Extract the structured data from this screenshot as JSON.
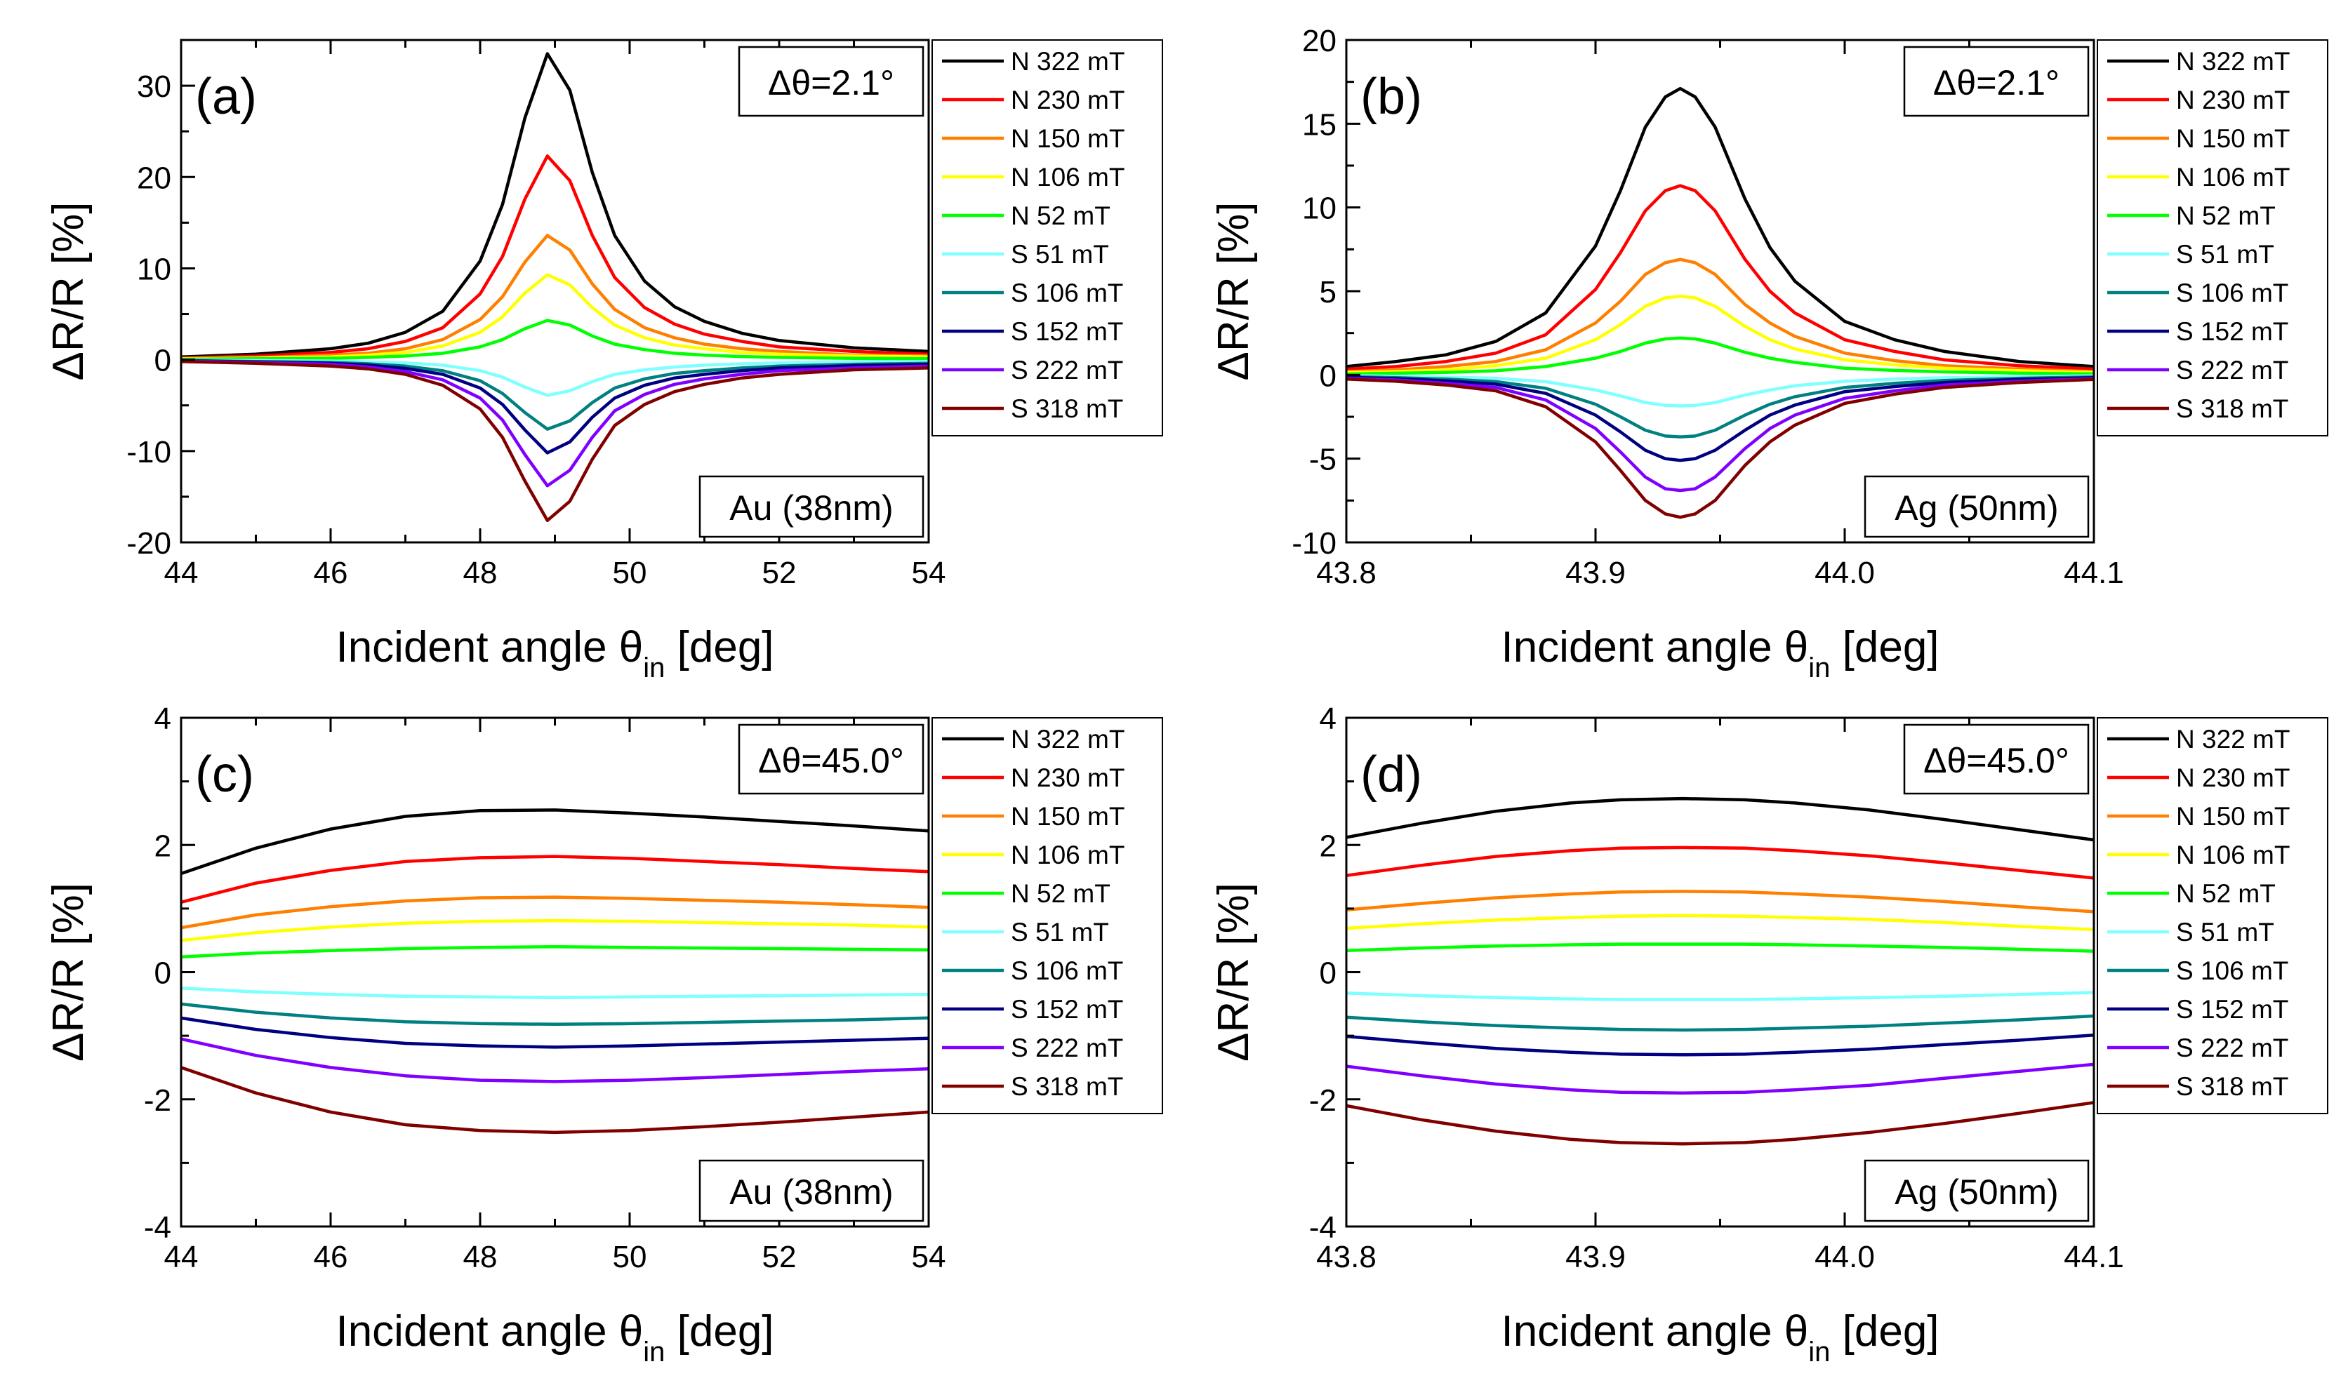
{
  "chart_data": [
    {
      "type": "line",
      "panel": "(a)",
      "delta_theta": "Δθ=2.1°",
      "sample": "Au (38nm)",
      "xlabel_main": "Incident angle θ",
      "xlabel_sub": "in",
      "xlabel_tail": " [deg]",
      "ylabel": "ΔR/R [%]",
      "xlim": [
        44,
        54
      ],
      "ylim": [
        -20,
        35
      ],
      "xticks": [
        44,
        46,
        48,
        50,
        52,
        54
      ],
      "yticks": [
        -20,
        -10,
        0,
        10,
        20,
        30
      ],
      "xtick_labels": [
        "44",
        "46",
        "48",
        "50",
        "52",
        "54"
      ],
      "ytick_labels": [
        "-20",
        "-10",
        "0",
        "10",
        "20",
        "30"
      ],
      "x": [
        44,
        45,
        46,
        46.5,
        47,
        47.5,
        48,
        48.3,
        48.6,
        48.9,
        49.2,
        49.5,
        49.8,
        50.2,
        50.6,
        51,
        51.5,
        52,
        53,
        54
      ],
      "series": [
        {
          "name": "N 322 mT",
          "color": "#000000",
          "values": [
            0.3,
            0.6,
            1.2,
            1.8,
            3.0,
            5.3,
            10.8,
            17.0,
            26.5,
            33.5,
            29.5,
            20.5,
            13.6,
            8.6,
            5.8,
            4.2,
            2.9,
            2.1,
            1.3,
            0.9
          ]
        },
        {
          "name": "N 230 mT",
          "color": "#ff0000",
          "values": [
            0.2,
            0.4,
            0.8,
            1.2,
            2.0,
            3.5,
            7.2,
            11.3,
            17.6,
            22.3,
            19.6,
            13.6,
            9.0,
            5.7,
            3.9,
            2.8,
            2.0,
            1.4,
            0.9,
            0.6
          ]
        },
        {
          "name": "N 150 mT",
          "color": "#ff7f00",
          "values": [
            0.1,
            0.2,
            0.5,
            0.7,
            1.2,
            2.2,
            4.4,
            6.9,
            10.7,
            13.6,
            12.0,
            8.3,
            5.5,
            3.5,
            2.4,
            1.7,
            1.2,
            0.9,
            0.5,
            0.4
          ]
        },
        {
          "name": "N 106 mT",
          "color": "#ffff00",
          "values": [
            0.1,
            0.2,
            0.3,
            0.5,
            0.8,
            1.5,
            3.0,
            4.7,
            7.3,
            9.3,
            8.2,
            5.7,
            3.8,
            2.4,
            1.6,
            1.2,
            0.8,
            0.6,
            0.4,
            0.3
          ]
        },
        {
          "name": "N 52 mT",
          "color": "#00ff00",
          "values": [
            0.05,
            0.1,
            0.15,
            0.25,
            0.4,
            0.7,
            1.4,
            2.2,
            3.4,
            4.3,
            3.8,
            2.6,
            1.7,
            1.1,
            0.7,
            0.5,
            0.35,
            0.25,
            0.15,
            0.1
          ]
        },
        {
          "name": "S 51 mT",
          "color": "#80ffff",
          "values": [
            -0.05,
            -0.1,
            -0.15,
            -0.25,
            -0.35,
            -0.6,
            -1.2,
            -1.9,
            -3.0,
            -3.9,
            -3.4,
            -2.4,
            -1.6,
            -1.1,
            -0.8,
            -0.6,
            -0.45,
            -0.35,
            -0.25,
            -0.2
          ]
        },
        {
          "name": "S 106 mT",
          "color": "#008080",
          "values": [
            -0.1,
            -0.2,
            -0.3,
            -0.45,
            -0.7,
            -1.2,
            -2.3,
            -3.7,
            -5.8,
            -7.6,
            -6.7,
            -4.7,
            -3.1,
            -2.1,
            -1.5,
            -1.2,
            -0.9,
            -0.7,
            -0.5,
            -0.4
          ]
        },
        {
          "name": "S 152 mT",
          "color": "#000080",
          "values": [
            -0.1,
            -0.25,
            -0.4,
            -0.6,
            -0.95,
            -1.6,
            -3.1,
            -4.9,
            -7.7,
            -10.2,
            -9.0,
            -6.3,
            -4.2,
            -2.8,
            -2.0,
            -1.6,
            -1.2,
            -0.9,
            -0.65,
            -0.5
          ]
        },
        {
          "name": "S 222 mT",
          "color": "#8000ff",
          "values": [
            -0.15,
            -0.3,
            -0.5,
            -0.8,
            -1.3,
            -2.2,
            -4.2,
            -6.6,
            -10.4,
            -13.8,
            -12.1,
            -8.5,
            -5.6,
            -3.8,
            -2.7,
            -2.1,
            -1.6,
            -1.2,
            -0.9,
            -0.7
          ]
        },
        {
          "name": "S 318 mT",
          "color": "#800000",
          "values": [
            -0.2,
            -0.4,
            -0.7,
            -1.0,
            -1.6,
            -2.8,
            -5.4,
            -8.5,
            -13.3,
            -17.6,
            -15.5,
            -10.9,
            -7.2,
            -4.9,
            -3.5,
            -2.7,
            -2.0,
            -1.6,
            -1.1,
            -0.9
          ]
        }
      ]
    },
    {
      "type": "line",
      "panel": "(b)",
      "delta_theta": "Δθ=2.1°",
      "sample": "Ag (50nm)",
      "xlabel_main": "Incident angle θ",
      "xlabel_sub": "in",
      "xlabel_tail": " [deg]",
      "ylabel": "ΔR/R [%]",
      "xlim": [
        43.8,
        44.1
      ],
      "ylim": [
        -10,
        20
      ],
      "xticks": [
        43.8,
        43.9,
        44.0,
        44.1
      ],
      "yticks": [
        -10,
        -5,
        0,
        5,
        10,
        15,
        20
      ],
      "xtick_labels": [
        "43.8",
        "43.9",
        "44.0",
        "44.1"
      ],
      "ytick_labels": [
        "-10",
        "-5",
        "0",
        "5",
        "10",
        "15",
        "20"
      ],
      "x": [
        43.8,
        43.82,
        43.84,
        43.86,
        43.88,
        43.9,
        43.91,
        43.92,
        43.928,
        43.934,
        43.94,
        43.948,
        43.96,
        43.97,
        43.98,
        44.0,
        44.02,
        44.04,
        44.07,
        44.1
      ],
      "series": [
        {
          "name": "N 322 mT",
          "color": "#000000",
          "values": [
            0.5,
            0.8,
            1.2,
            2.0,
            3.7,
            7.7,
            11.0,
            14.8,
            16.6,
            17.1,
            16.6,
            14.8,
            10.5,
            7.6,
            5.6,
            3.2,
            2.1,
            1.4,
            0.8,
            0.5
          ]
        },
        {
          "name": "N 230 mT",
          "color": "#ff0000",
          "values": [
            0.35,
            0.5,
            0.8,
            1.3,
            2.4,
            5.1,
            7.3,
            9.8,
            11.0,
            11.3,
            11.0,
            9.8,
            6.9,
            5.0,
            3.7,
            2.1,
            1.4,
            0.9,
            0.55,
            0.35
          ]
        },
        {
          "name": "N 150 mT",
          "color": "#ff7f00",
          "values": [
            0.2,
            0.3,
            0.5,
            0.8,
            1.5,
            3.1,
            4.4,
            6.0,
            6.7,
            6.9,
            6.7,
            6.0,
            4.2,
            3.1,
            2.3,
            1.3,
            0.85,
            0.55,
            0.35,
            0.2
          ]
        },
        {
          "name": "N 106 mT",
          "color": "#ffff00",
          "values": [
            0.15,
            0.2,
            0.3,
            0.55,
            1.0,
            2.1,
            3.0,
            4.1,
            4.6,
            4.7,
            4.6,
            4.1,
            2.9,
            2.1,
            1.55,
            0.9,
            0.6,
            0.4,
            0.25,
            0.15
          ]
        },
        {
          "name": "N 52 mT",
          "color": "#00ff00",
          "values": [
            0.05,
            0.1,
            0.15,
            0.25,
            0.5,
            1.0,
            1.4,
            1.9,
            2.15,
            2.2,
            2.15,
            1.9,
            1.35,
            1.0,
            0.75,
            0.4,
            0.27,
            0.18,
            0.1,
            0.06
          ]
        },
        {
          "name": "S 51 mT",
          "color": "#80ffff",
          "values": [
            -0.05,
            -0.08,
            -0.13,
            -0.2,
            -0.4,
            -0.9,
            -1.25,
            -1.65,
            -1.82,
            -1.85,
            -1.82,
            -1.65,
            -1.2,
            -0.9,
            -0.65,
            -0.38,
            -0.25,
            -0.17,
            -0.1,
            -0.06
          ]
        },
        {
          "name": "S 106 mT",
          "color": "#008080",
          "values": [
            -0.1,
            -0.16,
            -0.25,
            -0.4,
            -0.8,
            -1.75,
            -2.5,
            -3.3,
            -3.65,
            -3.7,
            -3.65,
            -3.3,
            -2.4,
            -1.75,
            -1.3,
            -0.75,
            -0.5,
            -0.33,
            -0.2,
            -0.12
          ]
        },
        {
          "name": "S 152 mT",
          "color": "#000080",
          "values": [
            -0.14,
            -0.22,
            -0.35,
            -0.55,
            -1.1,
            -2.4,
            -3.4,
            -4.5,
            -5.0,
            -5.1,
            -5.0,
            -4.5,
            -3.3,
            -2.4,
            -1.8,
            -1.0,
            -0.7,
            -0.45,
            -0.27,
            -0.16
          ]
        },
        {
          "name": "S 222 mT",
          "color": "#8000ff",
          "values": [
            -0.2,
            -0.3,
            -0.5,
            -0.75,
            -1.5,
            -3.2,
            -4.6,
            -6.1,
            -6.8,
            -6.9,
            -6.8,
            -6.1,
            -4.4,
            -3.2,
            -2.4,
            -1.4,
            -0.95,
            -0.6,
            -0.37,
            -0.22
          ]
        },
        {
          "name": "S 318 mT",
          "color": "#800000",
          "values": [
            -0.25,
            -0.38,
            -0.6,
            -0.95,
            -1.9,
            -4.0,
            -5.7,
            -7.5,
            -8.3,
            -8.5,
            -8.3,
            -7.5,
            -5.4,
            -4.0,
            -3.0,
            -1.7,
            -1.15,
            -0.75,
            -0.45,
            -0.27
          ]
        }
      ]
    },
    {
      "type": "line",
      "panel": "(c)",
      "delta_theta": "Δθ=45.0°",
      "sample": "Au (38nm)",
      "xlabel_main": "Incident angle θ",
      "xlabel_sub": "in",
      "xlabel_tail": " [deg]",
      "ylabel": "ΔR/R [%]",
      "xlim": [
        44,
        54
      ],
      "ylim": [
        -4,
        4
      ],
      "xticks": [
        44,
        46,
        48,
        50,
        52,
        54
      ],
      "yticks": [
        -4,
        -2,
        0,
        2,
        4
      ],
      "xtick_labels": [
        "44",
        "46",
        "48",
        "50",
        "52",
        "54"
      ],
      "ytick_labels": [
        "-4",
        "-2",
        "0",
        "2",
        "4"
      ],
      "x": [
        44,
        45,
        46,
        47,
        48,
        49,
        50,
        51,
        52,
        53,
        54
      ],
      "series": [
        {
          "name": "N 322 mT",
          "color": "#000000",
          "values": [
            1.55,
            1.95,
            2.25,
            2.45,
            2.54,
            2.55,
            2.5,
            2.44,
            2.37,
            2.3,
            2.22
          ]
        },
        {
          "name": "N 230 mT",
          "color": "#ff0000",
          "values": [
            1.1,
            1.4,
            1.6,
            1.74,
            1.8,
            1.82,
            1.79,
            1.74,
            1.69,
            1.63,
            1.58
          ]
        },
        {
          "name": "N 150 mT",
          "color": "#ff7f00",
          "values": [
            0.7,
            0.9,
            1.03,
            1.12,
            1.17,
            1.18,
            1.16,
            1.13,
            1.1,
            1.06,
            1.02
          ]
        },
        {
          "name": "N 106 mT",
          "color": "#ffff00",
          "values": [
            0.5,
            0.62,
            0.71,
            0.77,
            0.8,
            0.81,
            0.8,
            0.78,
            0.76,
            0.74,
            0.71
          ]
        },
        {
          "name": "N 52 mT",
          "color": "#00ff00",
          "values": [
            0.24,
            0.3,
            0.34,
            0.37,
            0.39,
            0.4,
            0.39,
            0.38,
            0.37,
            0.36,
            0.35
          ]
        },
        {
          "name": "S 51 mT",
          "color": "#80ffff",
          "values": [
            -0.25,
            -0.31,
            -0.35,
            -0.38,
            -0.39,
            -0.4,
            -0.39,
            -0.38,
            -0.37,
            -0.36,
            -0.35
          ]
        },
        {
          "name": "S 106 mT",
          "color": "#008080",
          "values": [
            -0.5,
            -0.63,
            -0.72,
            -0.78,
            -0.81,
            -0.82,
            -0.81,
            -0.79,
            -0.77,
            -0.75,
            -0.72
          ]
        },
        {
          "name": "S 152 mT",
          "color": "#000080",
          "values": [
            -0.72,
            -0.9,
            -1.03,
            -1.12,
            -1.16,
            -1.18,
            -1.16,
            -1.13,
            -1.1,
            -1.07,
            -1.04
          ]
        },
        {
          "name": "S 222 mT",
          "color": "#8000ff",
          "values": [
            -1.05,
            -1.31,
            -1.5,
            -1.63,
            -1.7,
            -1.72,
            -1.7,
            -1.66,
            -1.61,
            -1.56,
            -1.52
          ]
        },
        {
          "name": "S 318 mT",
          "color": "#800000",
          "values": [
            -1.5,
            -1.9,
            -2.2,
            -2.4,
            -2.49,
            -2.52,
            -2.49,
            -2.43,
            -2.36,
            -2.28,
            -2.2
          ]
        }
      ]
    },
    {
      "type": "line",
      "panel": "(d)",
      "delta_theta": "Δθ=45.0°",
      "sample": "Ag (50nm)",
      "xlabel_main": "Incident angle θ",
      "xlabel_sub": "in",
      "xlabel_tail": " [deg]",
      "ylabel": "ΔR/R [%]",
      "xlim": [
        43.8,
        44.1
      ],
      "ylim": [
        -4,
        4
      ],
      "xticks": [
        43.8,
        43.9,
        44.0,
        44.1
      ],
      "yticks": [
        -4,
        -2,
        0,
        2,
        4
      ],
      "xtick_labels": [
        "43.8",
        "43.9",
        "44.0",
        "44.1"
      ],
      "ytick_labels": [
        "-4",
        "-2",
        "0",
        "2",
        "4"
      ],
      "x": [
        43.8,
        43.83,
        43.86,
        43.89,
        43.91,
        43.935,
        43.96,
        43.98,
        44.01,
        44.04,
        44.07,
        44.1
      ],
      "series": [
        {
          "name": "N 322 mT",
          "color": "#000000",
          "values": [
            2.12,
            2.34,
            2.53,
            2.66,
            2.71,
            2.73,
            2.71,
            2.66,
            2.55,
            2.4,
            2.24,
            2.08
          ]
        },
        {
          "name": "N 230 mT",
          "color": "#ff0000",
          "values": [
            1.52,
            1.68,
            1.82,
            1.91,
            1.95,
            1.96,
            1.95,
            1.91,
            1.83,
            1.72,
            1.6,
            1.48
          ]
        },
        {
          "name": "N 150 mT",
          "color": "#ff7f00",
          "values": [
            0.98,
            1.08,
            1.17,
            1.23,
            1.26,
            1.27,
            1.26,
            1.23,
            1.18,
            1.11,
            1.03,
            0.95
          ]
        },
        {
          "name": "N 106 mT",
          "color": "#ffff00",
          "values": [
            0.69,
            0.76,
            0.82,
            0.86,
            0.88,
            0.89,
            0.88,
            0.86,
            0.83,
            0.78,
            0.72,
            0.67
          ]
        },
        {
          "name": "N 52 mT",
          "color": "#00ff00",
          "values": [
            0.34,
            0.38,
            0.41,
            0.43,
            0.44,
            0.44,
            0.44,
            0.43,
            0.41,
            0.39,
            0.36,
            0.33
          ]
        },
        {
          "name": "S 51 mT",
          "color": "#80ffff",
          "values": [
            -0.33,
            -0.37,
            -0.4,
            -0.42,
            -0.43,
            -0.43,
            -0.43,
            -0.42,
            -0.4,
            -0.38,
            -0.35,
            -0.32
          ]
        },
        {
          "name": "S 106 mT",
          "color": "#008080",
          "values": [
            -0.71,
            -0.78,
            -0.84,
            -0.88,
            -0.9,
            -0.91,
            -0.9,
            -0.88,
            -0.85,
            -0.8,
            -0.75,
            -0.69
          ]
        },
        {
          "name": "S 152 mT",
          "color": "#000080",
          "values": [
            -1.01,
            -1.11,
            -1.2,
            -1.26,
            -1.29,
            -1.3,
            -1.29,
            -1.26,
            -1.21,
            -1.14,
            -1.07,
            -0.99
          ]
        },
        {
          "name": "S 222 mT",
          "color": "#8000ff",
          "values": [
            -1.48,
            -1.63,
            -1.76,
            -1.85,
            -1.89,
            -1.9,
            -1.89,
            -1.85,
            -1.78,
            -1.67,
            -1.56,
            -1.45
          ]
        },
        {
          "name": "S 318 mT",
          "color": "#800000",
          "values": [
            -2.1,
            -2.32,
            -2.5,
            -2.63,
            -2.68,
            -2.7,
            -2.68,
            -2.63,
            -2.52,
            -2.38,
            -2.22,
            -2.05
          ]
        }
      ]
    }
  ]
}
